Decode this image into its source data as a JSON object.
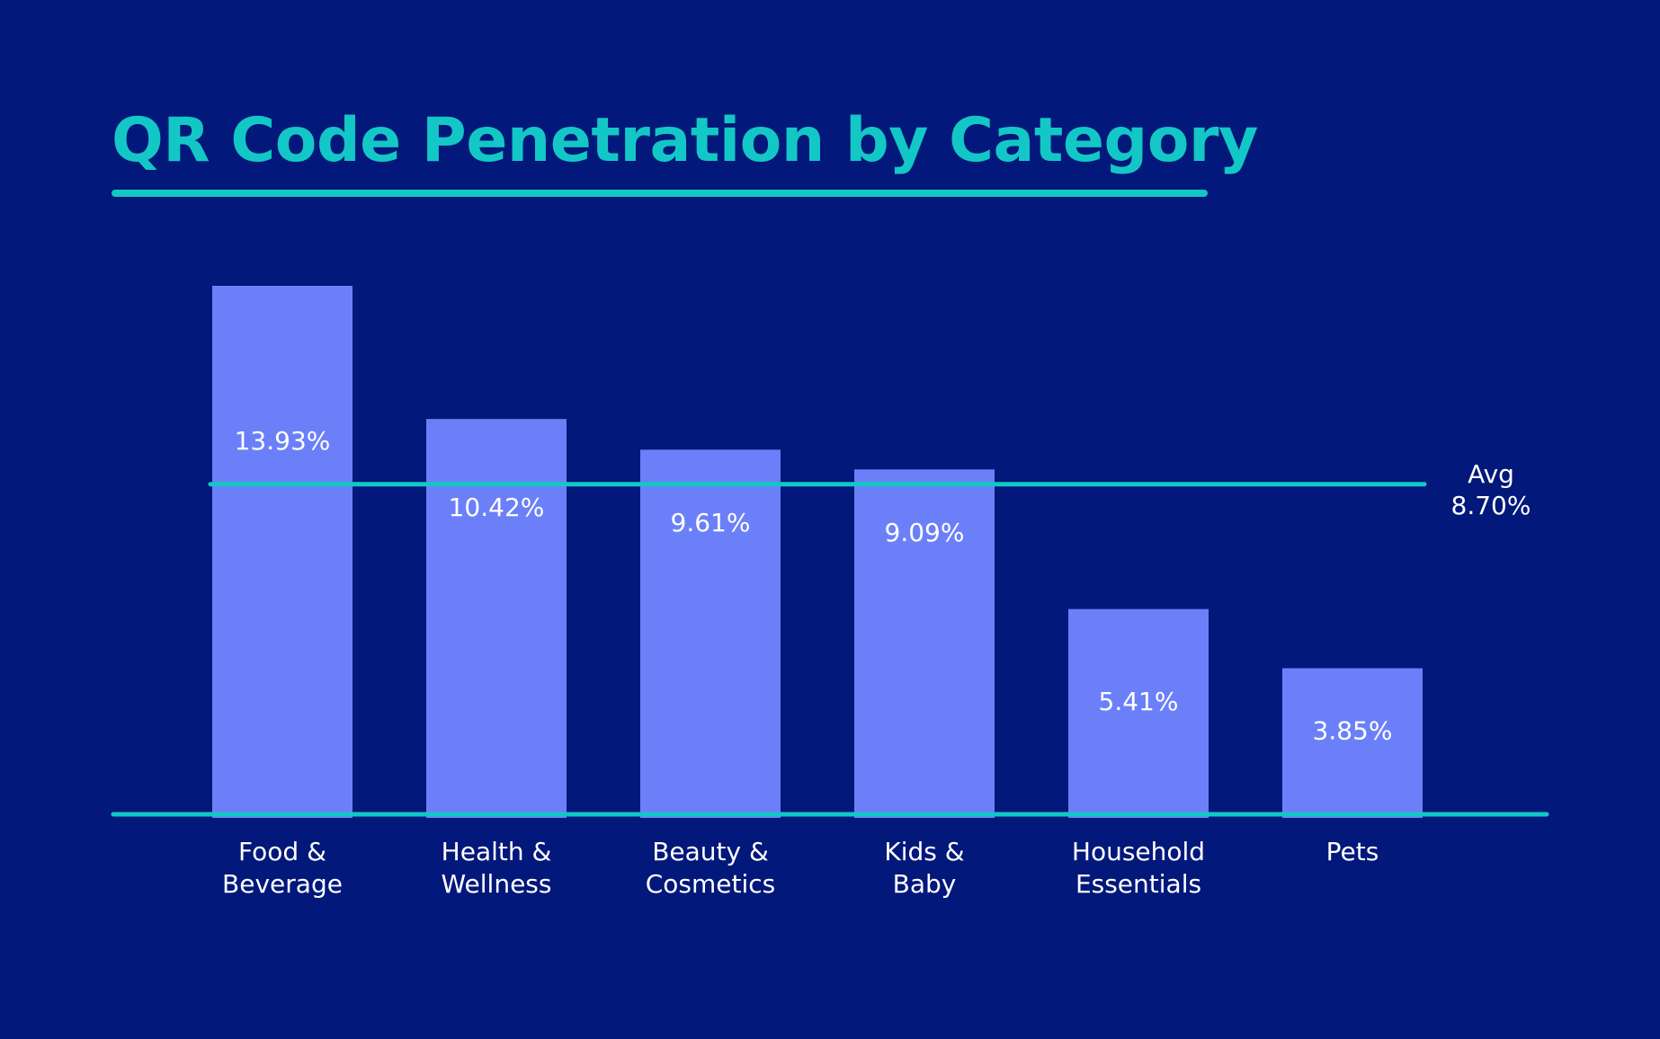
{
  "colors": {
    "background": "#02187a",
    "bar": "#6b80f8",
    "accent": "#13c7c6",
    "text": "#ffffff"
  },
  "chart_data": {
    "type": "bar",
    "title": "QR Code Penetration by Category",
    "xlabel": "",
    "ylabel": "",
    "ylim": [
      0,
      16.6
    ],
    "grid": false,
    "categories": [
      [
        "Food &",
        "Beverage"
      ],
      [
        "Health &",
        "Wellness"
      ],
      [
        "Beauty &",
        "Cosmetics"
      ],
      [
        "Kids &",
        "Baby"
      ],
      [
        "Household",
        "Essentials"
      ],
      [
        "Pets"
      ]
    ],
    "values": [
      13.93,
      10.42,
      9.61,
      9.09,
      5.41,
      3.85
    ],
    "value_labels": [
      "13.93%",
      "10.42%",
      "9.61%",
      "9.09%",
      "5.41%",
      "3.85%"
    ],
    "reference_line": {
      "value": 8.7,
      "label_lines": [
        "Avg",
        "8.70%"
      ]
    }
  }
}
